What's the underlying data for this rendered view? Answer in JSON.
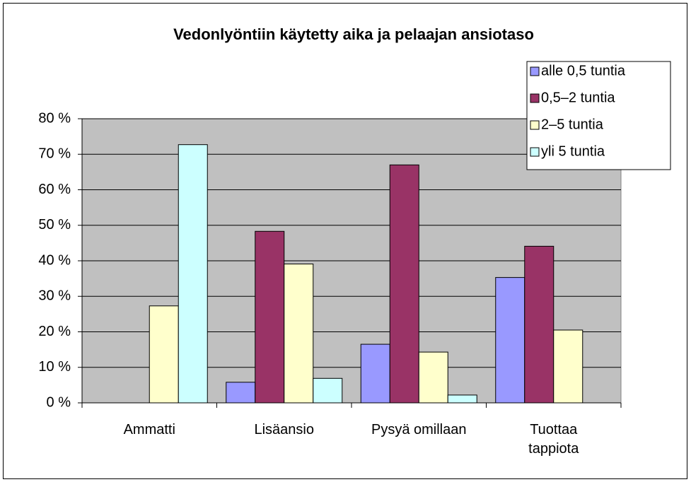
{
  "chart_data": {
    "type": "bar",
    "title": "Vedonlyöntiin käytetty aika ja pelaajan ansiotaso",
    "categories": [
      "Ammatti",
      "Lisäansio",
      "Pysyä omillaan",
      "Tuottaa\ntappiota"
    ],
    "series": [
      {
        "name": "alle 0,5 tuntia",
        "color": "#9999ff",
        "values": [
          0,
          5.8,
          16.5,
          35.3
        ]
      },
      {
        "name": "0,5–2 tuntia",
        "color": "#993366",
        "values": [
          0,
          48.3,
          67.0,
          44.1
        ]
      },
      {
        "name": "2–5 tuntia",
        "color": "#ffffcc",
        "values": [
          27.3,
          39.1,
          14.3,
          20.5
        ]
      },
      {
        "name": "yli 5 tuntia",
        "color": "#ccffff",
        "values": [
          72.7,
          6.9,
          2.2,
          0
        ]
      }
    ],
    "ylim": [
      0,
      80
    ],
    "yticks": [
      {
        "value": 0,
        "label": "0 %"
      },
      {
        "value": 10,
        "label": "10 %"
      },
      {
        "value": 20,
        "label": "20 %"
      },
      {
        "value": 30,
        "label": "30 %"
      },
      {
        "value": 40,
        "label": "40 %"
      },
      {
        "value": 50,
        "label": "50 %"
      },
      {
        "value": 60,
        "label": "60 %"
      },
      {
        "value": 70,
        "label": "70 %"
      },
      {
        "value": 80,
        "label": "80 %"
      }
    ],
    "grid": true,
    "legend": "top-right"
  }
}
